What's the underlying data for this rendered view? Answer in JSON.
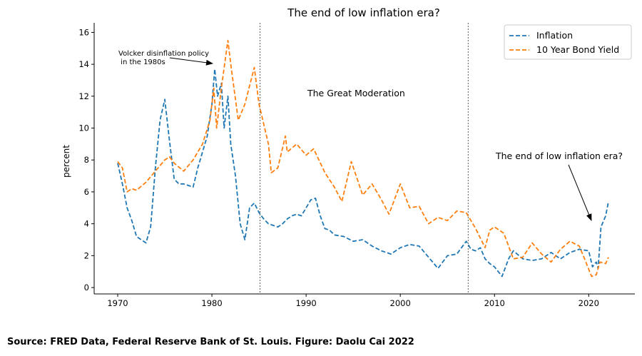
{
  "chart_data": {
    "type": "line",
    "title": "The end of low inflation era?",
    "xlabel": "",
    "ylabel": "percent",
    "xlim": [
      1967.5,
      2024.9
    ],
    "ylim": [
      -0.4,
      16.6
    ],
    "xticks": [
      1970,
      1980,
      1990,
      2000,
      2010,
      2020
    ],
    "yticks": [
      0,
      2,
      4,
      6,
      8,
      10,
      12,
      14,
      16
    ],
    "grid": false,
    "legend_placement": "top-right",
    "series": [
      {
        "name": "Inflation",
        "color": "#1f77b4",
        "style": "dashed",
        "x": [
          1970,
          1970.5,
          1971,
          1971.5,
          1972,
          1972.5,
          1973,
          1973.5,
          1974,
          1974.5,
          1975,
          1975.5,
          1976,
          1976.5,
          1977,
          1977.5,
          1978,
          1978.5,
          1979,
          1979.5,
          1980,
          1980.3,
          1980.6,
          1981,
          1981.3,
          1981.7,
          1982,
          1982.5,
          1983,
          1983.5,
          1984,
          1984.5,
          1985,
          1985.5,
          1986,
          1986.5,
          1987,
          1987.5,
          1988,
          1988.5,
          1989,
          1989.5,
          1990,
          1990.5,
          1991,
          1991.5,
          1992,
          1992.5,
          1993,
          1994,
          1995,
          1996,
          1997,
          1998,
          1999,
          2000,
          2001,
          2002,
          2003,
          2004,
          2005,
          2006,
          2007,
          2007.5,
          2008,
          2008.5,
          2009,
          2009.5,
          2010,
          2010.8,
          2011.5,
          2012,
          2013,
          2014,
          2015,
          2016,
          2017,
          2018,
          2019,
          2020,
          2020.4,
          2020.8,
          2021,
          2021.3,
          2021.8,
          2022.1
        ],
        "y": [
          7.8,
          6.5,
          5.0,
          4.2,
          3.2,
          3.0,
          2.8,
          3.8,
          7.5,
          10.5,
          11.8,
          9.2,
          6.8,
          6.5,
          6.5,
          6.4,
          6.3,
          7.5,
          8.5,
          9.5,
          11.5,
          13.7,
          12.0,
          12.8,
          10.0,
          12.0,
          9.0,
          7.0,
          4.0,
          3.0,
          5.0,
          5.3,
          4.7,
          4.3,
          4.0,
          3.9,
          3.8,
          4.0,
          4.3,
          4.5,
          4.6,
          4.5,
          5.0,
          5.5,
          5.6,
          4.5,
          3.7,
          3.6,
          3.3,
          3.2,
          2.9,
          3.0,
          2.6,
          2.3,
          2.1,
          2.5,
          2.7,
          2.6,
          1.9,
          1.2,
          2.0,
          2.1,
          2.9,
          2.4,
          2.3,
          2.5,
          1.8,
          1.5,
          1.3,
          0.7,
          1.8,
          2.3,
          1.8,
          1.7,
          1.8,
          2.2,
          1.8,
          2.2,
          2.4,
          2.3,
          1.3,
          1.6,
          1.2,
          3.8,
          4.5,
          5.4
        ]
      },
      {
        "name": "10 Year Bond Yield",
        "color": "#ff7f0e",
        "style": "dashed",
        "x": [
          1970,
          1970.5,
          1971,
          1971.5,
          1972,
          1973,
          1974,
          1975,
          1975.5,
          1976,
          1977,
          1978,
          1979,
          1979.8,
          1980.2,
          1980.5,
          1981,
          1981.7,
          1982,
          1982.8,
          1983.5,
          1984.5,
          1985,
          1986,
          1986.3,
          1987,
          1987.8,
          1988,
          1989,
          1990,
          1990.8,
          1992,
          1993,
          1993.8,
          1994.8,
          1996,
          1997,
          1998,
          1998.8,
          2000,
          2001,
          2002,
          2003,
          2004,
          2005,
          2006,
          2007,
          2008,
          2009,
          2009.5,
          2010,
          2011,
          2012,
          2013,
          2014,
          2015,
          2016,
          2017,
          2018,
          2019,
          2019.7,
          2020.3,
          2020.8,
          2021.2,
          2021.8,
          2022.1
        ],
        "y": [
          7.9,
          7.5,
          6.0,
          6.2,
          6.1,
          6.6,
          7.3,
          8.0,
          8.2,
          7.8,
          7.3,
          8.0,
          9.0,
          10.5,
          12.5,
          10.0,
          12.5,
          15.5,
          14.0,
          10.5,
          11.5,
          13.8,
          11.5,
          9.0,
          7.2,
          7.5,
          9.5,
          8.5,
          9.0,
          8.3,
          8.7,
          7.2,
          6.3,
          5.4,
          7.9,
          5.8,
          6.5,
          5.5,
          4.6,
          6.5,
          5.0,
          5.1,
          4.0,
          4.4,
          4.2,
          4.8,
          4.7,
          3.7,
          2.5,
          3.6,
          3.8,
          3.4,
          1.8,
          1.9,
          2.8,
          2.1,
          1.6,
          2.4,
          2.9,
          2.6,
          1.6,
          0.7,
          0.8,
          1.6,
          1.5,
          1.9
        ]
      }
    ],
    "vlines": [
      1985.1,
      2007.2
    ],
    "annotations": [
      {
        "text_lines": [
          "Volcker disinflation policy",
          " in the 1980s"
        ],
        "x": 1980.3,
        "y": 14.0
      },
      {
        "text": "The Great Moderation",
        "x": 1990,
        "y": 12.2
      },
      {
        "text": "The end of low inflation era?",
        "x": 2020.3,
        "y": 4.1
      }
    ]
  },
  "footer": {
    "source": "Source: FRED Data, Federal Reserve Bank of St. Louis. Figure: Daolu Cai 2022"
  }
}
